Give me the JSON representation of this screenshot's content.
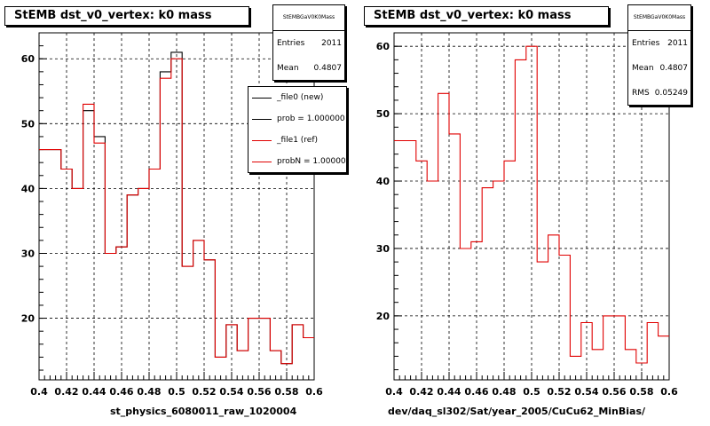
{
  "colors": {
    "ref": "#e00000",
    "new": "#000000",
    "grid": "#000000"
  },
  "legend": [
    {
      "label": "_file0 (new)",
      "color": "#000000"
    },
    {
      "label": "prob = 1.000000",
      "color": "#000000"
    },
    {
      "label": "_file1 (ref)",
      "color": "#e00000"
    },
    {
      "label": "probN = 1.000000",
      "color": "#e00000"
    }
  ],
  "footnote": "",
  "chart_data": [
    {
      "type": "bar",
      "style": "step-histogram",
      "title": "StEMB dst_v0_vertex: k0 mass",
      "xlabel": "st_physics_6080011_raw_1020004",
      "stats": {
        "name": "StEMBGaV0K0Mass",
        "entries_label": "Entries",
        "entries": "2011",
        "mean_label": "Mean",
        "mean": "0.4807"
      },
      "xlim": [
        0.4,
        0.6
      ],
      "ylim": [
        10.5,
        64
      ],
      "x_ticks": [
        "0.4",
        "0.42",
        "0.44",
        "0.46",
        "0.48",
        "0.5",
        "0.52",
        "0.54",
        "0.56",
        "0.58",
        "0.6"
      ],
      "y_ticks": [
        20,
        30,
        40,
        50,
        60
      ],
      "bin_width": 0.008,
      "series": [
        {
          "name": "_file0 (new)",
          "color": "#000000",
          "values": [
            46,
            46,
            43,
            40,
            52,
            48,
            30,
            31,
            39,
            40,
            43,
            58,
            61,
            28,
            32,
            29,
            14,
            19,
            15,
            20,
            20,
            15,
            13,
            19,
            17
          ]
        },
        {
          "name": "_file1 (ref)",
          "color": "#e00000",
          "values": [
            46,
            46,
            43,
            40,
            53,
            47,
            30,
            31,
            39,
            40,
            43,
            57,
            60,
            28,
            32,
            29,
            14,
            19,
            15,
            20,
            20,
            15,
            13,
            19,
            17
          ]
        }
      ]
    },
    {
      "type": "bar",
      "style": "step-histogram",
      "title": "StEMB dst_v0_vertex: k0 mass",
      "xlabel": "dev/daq_sl302/Sat/year_2005/CuCu62_MinBias/",
      "stats": {
        "name": "StEMBGaV0K0Mass",
        "entries_label": "Entries",
        "entries": "2011",
        "mean_label": "Mean",
        "mean": "0.4807",
        "rms_label": "RMS",
        "rms": "0.05249"
      },
      "xlim": [
        0.4,
        0.6
      ],
      "ylim": [
        10.5,
        62
      ],
      "x_ticks": [
        "0.4",
        "0.42",
        "0.44",
        "0.46",
        "0.48",
        "0.5",
        "0.52",
        "0.54",
        "0.56",
        "0.58",
        "0.6"
      ],
      "y_ticks": [
        20,
        30,
        40,
        50,
        60
      ],
      "bin_width": 0.008,
      "series": [
        {
          "name": "",
          "color": "#e00000",
          "values": [
            46,
            46,
            43,
            40,
            53,
            47,
            30,
            31,
            39,
            40,
            43,
            58,
            60,
            28,
            32,
            29,
            14,
            19,
            15,
            20,
            20,
            15,
            13,
            19,
            17
          ]
        }
      ]
    }
  ]
}
